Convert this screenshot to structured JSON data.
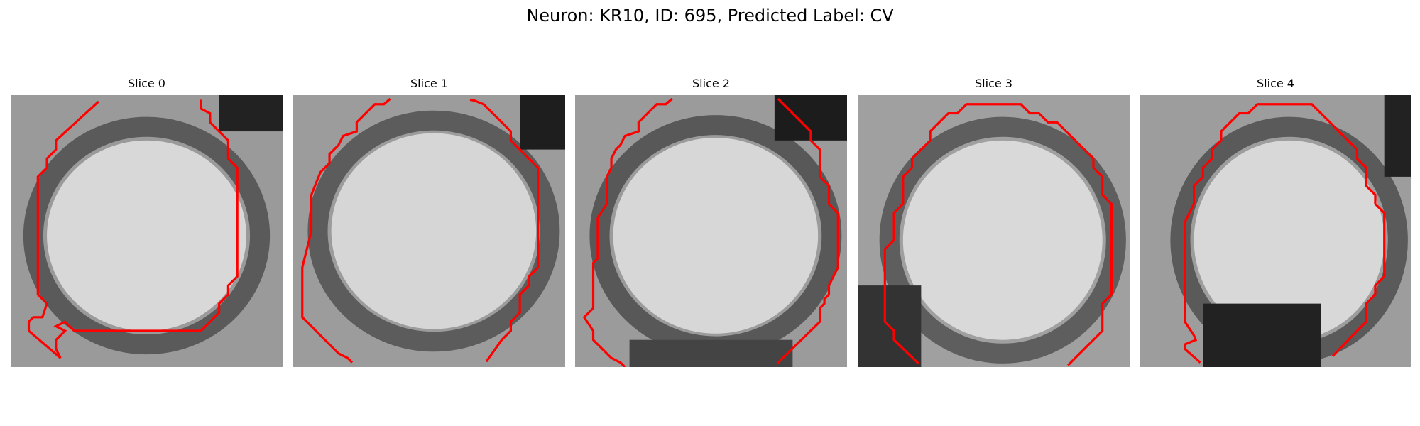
{
  "figure": {
    "title": "Neuron: KR10, ID: 695, Predicted Label: CV"
  },
  "panels": [
    {
      "title": "Slice 0"
    },
    {
      "title": "Slice 1"
    },
    {
      "title": "Slice 2"
    },
    {
      "title": "Slice 3"
    },
    {
      "title": "Slice 4"
    }
  ],
  "colors": {
    "contour": "#ff0000",
    "background": "#ffffff",
    "image_colormap": "grayscale"
  }
}
